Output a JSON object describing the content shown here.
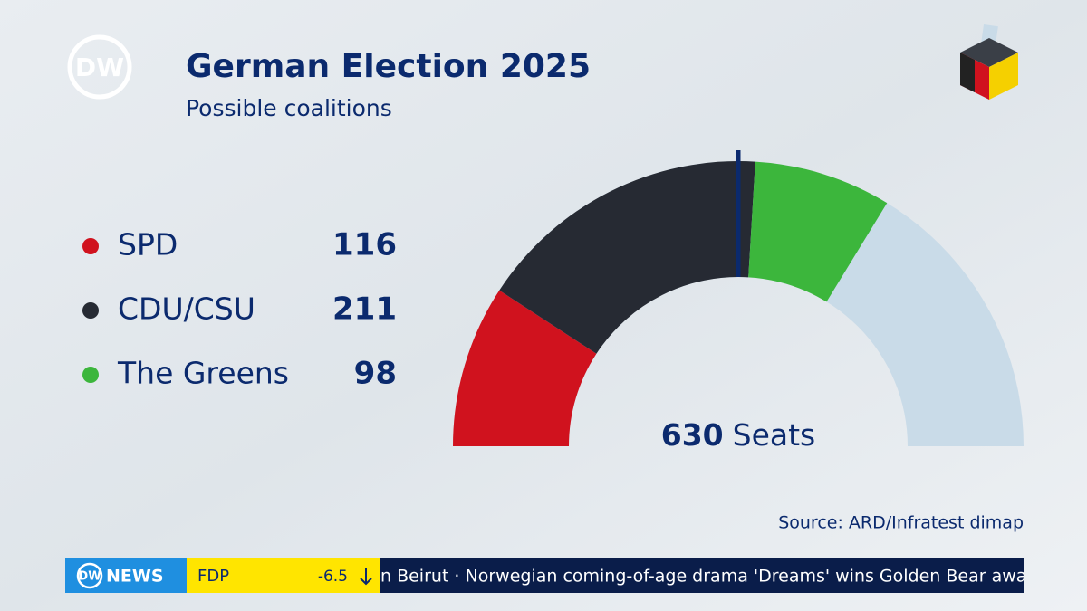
{
  "chart_data": {
    "type": "pie",
    "title": "German Election 2025",
    "subtitle": "Possible coalitions",
    "categories": [
      "SPD",
      "CDU/CSU",
      "The Greens"
    ],
    "values": [
      116,
      211,
      98
    ],
    "colors": [
      "#d0121e",
      "#262a33",
      "#3cb63c"
    ],
    "total": 630,
    "total_label": "Seats",
    "source": "Source: ARD/Infratest dimap"
  },
  "broadcaster": {
    "logo": "DW",
    "news_logo": "DW",
    "news_label": "NEWS"
  },
  "ticker": {
    "party": "FDP",
    "change": "-6.5",
    "headline": "n Beirut · Norwegian coming-of-age drama 'Dreams' wins Golden Bear awar"
  }
}
